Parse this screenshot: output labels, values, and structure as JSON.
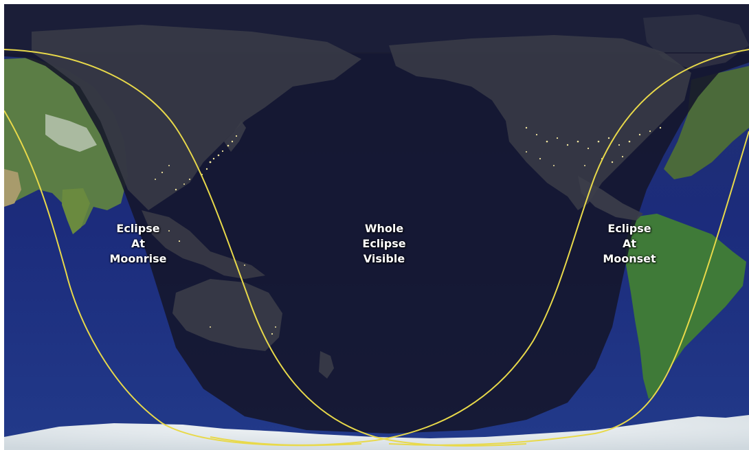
{
  "map": {
    "regions": {
      "moonrise": {
        "line1": "Eclipse",
        "line2": "At",
        "line3": "Moonrise"
      },
      "whole": {
        "line1": "Whole",
        "line2": "Eclipse",
        "line3": "Visible"
      },
      "moonset": {
        "line1": "Eclipse",
        "line2": "At",
        "line3": "Moonset"
      }
    },
    "colors": {
      "ocean": "#1a2f7a",
      "land": "#4f7a3a",
      "ice": "#e8eef2",
      "night_shade": "#14162a",
      "boundary_line": "#e8d94a",
      "city_lights": "#f2e6a0"
    }
  }
}
